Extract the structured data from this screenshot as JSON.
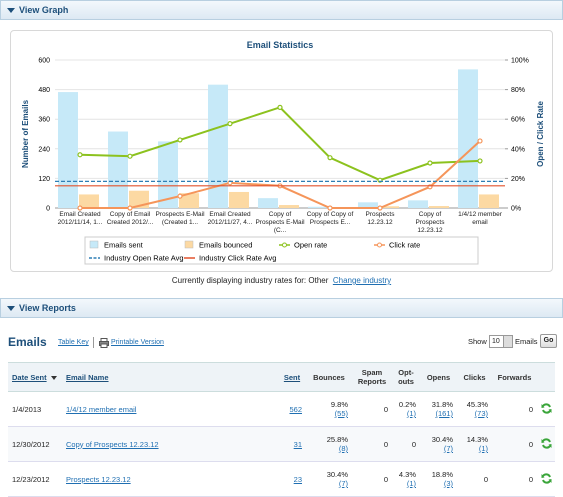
{
  "graph_panel": {
    "title": "View Graph"
  },
  "chart_data": {
    "type": "combo",
    "title": "Email Statistics",
    "ylabel": "Number of Emails",
    "y2label": "Open / Click Rate",
    "categories": [
      "Email Created 2012/11/14, 1...",
      "Copy of Email Created 2012/...",
      "Prospects E-Mail (Created 1...",
      "Email Created 2012/11/27, 4...",
      "Copy of Prospects E-Mail (C...",
      "Copy of Copy of Prospects E...",
      "Prospects 12.23.12",
      "Copy of Prospects 12.23.12",
      "1/4/12 member email"
    ],
    "series": [
      {
        "name": "Emails sent",
        "type": "bar",
        "color": "#c6e9f8",
        "values": [
          470,
          310,
          270,
          500,
          40,
          5,
          23,
          31,
          562
        ]
      },
      {
        "name": "Emails bounced",
        "type": "bar",
        "color": "#fcd9a3",
        "values": [
          55,
          70,
          60,
          65,
          12,
          0,
          7,
          8,
          55
        ]
      },
      {
        "name": "Open rate",
        "type": "line",
        "axis": "y2",
        "color": "#8cc21e",
        "values": [
          36,
          35,
          46,
          57,
          68,
          34,
          18.8,
          30.4,
          31.8
        ]
      },
      {
        "name": "Click rate",
        "type": "line",
        "axis": "y2",
        "color": "#f5955a",
        "values": [
          0,
          0,
          8,
          17,
          15,
          0,
          0,
          14.3,
          45.3
        ]
      }
    ],
    "reference_lines": [
      {
        "name": "Industry Open Rate Avg",
        "color": "#2e7fb5",
        "value": 18,
        "axis": "y2",
        "dashed": true
      },
      {
        "name": "Industry Click Rate Avg",
        "color": "#e2532d",
        "value": 15,
        "axis": "y2",
        "dashed": false
      }
    ],
    "ylim": [
      0,
      600
    ],
    "yticks": [
      0,
      120,
      240,
      360,
      480,
      600
    ],
    "y2lim": [
      0,
      100
    ],
    "y2ticks": [
      {
        "value": 0,
        "label": "0%"
      },
      {
        "value": 20,
        "label": "20%"
      },
      {
        "value": 40,
        "label": "40%"
      },
      {
        "value": 60,
        "label": "60%"
      },
      {
        "value": 80,
        "label": "80%"
      },
      {
        "value": 100,
        "label": "100%"
      }
    ],
    "legend": "bottom"
  },
  "industry_note": {
    "text": "Currently displaying industry rates for: Other",
    "link": "Change industry"
  },
  "reports_panel": {
    "title": "View Reports",
    "heading": "Emails",
    "table_key": "Table Key",
    "printable": "Printable Version",
    "show": "Show",
    "page_size": "10",
    "show_unit": "Emails",
    "go": "Go"
  },
  "table": {
    "columns": [
      "Date Sent",
      "Email Name",
      "Sent",
      "Bounces",
      "Spam Reports",
      "Opt-outs",
      "Opens",
      "Clicks",
      "Forwards"
    ],
    "rows": [
      [
        "1/4/2013",
        "1/4/12 member email",
        "562",
        {
          "rate": "9.8%",
          "count": "(55)"
        },
        "0",
        {
          "rate": "0.2%",
          "count": "(1)"
        },
        {
          "rate": "31.8%",
          "count": "(161)"
        },
        {
          "rate": "45.3%",
          "count": "(73)"
        },
        "0"
      ],
      [
        "12/30/2012",
        "Copy of Prospects 12.23.12",
        "31",
        {
          "rate": "25.8%",
          "count": "(8)"
        },
        "0",
        "0",
        {
          "rate": "30.4%",
          "count": "(7)"
        },
        {
          "rate": "14.3%",
          "count": "(1)"
        },
        "0"
      ],
      [
        "12/23/2012",
        "Prospects 12.23.12",
        "23",
        {
          "rate": "30.4%",
          "count": "(7)"
        },
        "0",
        {
          "rate": "4.3%",
          "count": "(1)"
        },
        {
          "rate": "18.8%",
          "count": "(3)"
        },
        "0",
        "0"
      ]
    ]
  }
}
